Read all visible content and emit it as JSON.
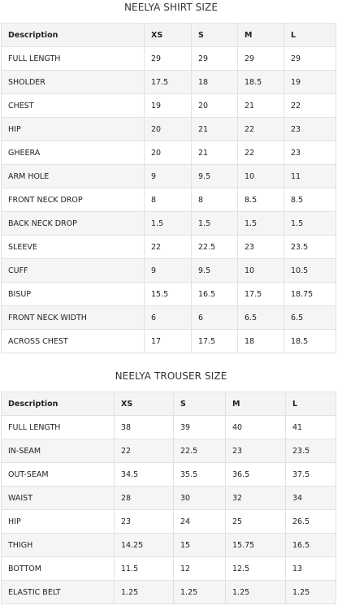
{
  "shirt": {
    "title": "NEELYA SHIRT SIZE",
    "headers": [
      "Description",
      "XS",
      "S",
      "M",
      "L"
    ],
    "rows": [
      [
        "FULL LENGTH",
        "29",
        "29",
        "29",
        "29"
      ],
      [
        "SHOLDER",
        "17.5",
        "18",
        "18.5",
        "19"
      ],
      [
        "CHEST",
        "19",
        "20",
        "21",
        "22"
      ],
      [
        "HIP",
        "20",
        "21",
        "22",
        "23"
      ],
      [
        "GHEERA",
        "20",
        "21",
        "22",
        "23"
      ],
      [
        "ARM HOLE",
        "9",
        "9.5",
        "10",
        "11"
      ],
      [
        "FRONT NECK DROP",
        "8",
        "8",
        "8.5",
        "8.5"
      ],
      [
        "BACK NECK DROP",
        "1.5",
        "1.5",
        "1.5",
        "1.5"
      ],
      [
        "SLEEVE",
        "22",
        "22.5",
        "23",
        "23.5"
      ],
      [
        "CUFF",
        "9",
        "9.5",
        "10",
        "10.5"
      ],
      [
        "BISUP",
        "15.5",
        "16.5",
        "17.5",
        "18.75"
      ],
      [
        "FRONT NECK WIDTH",
        "6",
        "6",
        "6.5",
        "6.5"
      ],
      [
        "ACROSS CHEST",
        "17",
        "17.5",
        "18",
        "18.5"
      ]
    ]
  },
  "trouser": {
    "title": "NEELYA TROUSER SIZE",
    "headers": [
      "Description",
      "XS",
      "S",
      "M",
      "L"
    ],
    "rows": [
      [
        "FULL LENGTH",
        "38",
        "39",
        "40",
        "41"
      ],
      [
        "IN-SEAM",
        "22",
        "22.5",
        "23",
        "23.5"
      ],
      [
        "OUT-SEAM",
        "34.5",
        "35.5",
        "36.5",
        "37.5"
      ],
      [
        "WAIST",
        "28",
        "30",
        "32",
        "34"
      ],
      [
        "HIP",
        "23",
        "24",
        "25",
        "26.5"
      ],
      [
        "THIGH",
        "14.25",
        "15",
        "15.75",
        "16.5"
      ],
      [
        "BOTTOM",
        "11.5",
        "12",
        "12.5",
        "13"
      ],
      [
        "ELASTIC BELT",
        "1.25",
        "1.25",
        "1.25",
        "1.25"
      ]
    ]
  }
}
